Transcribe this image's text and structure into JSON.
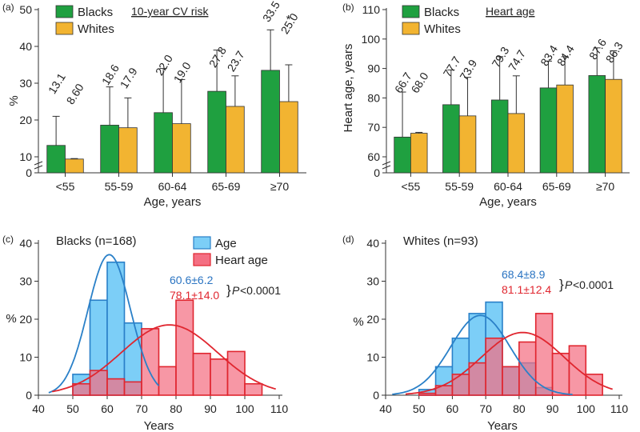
{
  "figure": {
    "colors": {
      "blacks": "#1fa040",
      "whites": "#f2b431",
      "age": "#7ccef7",
      "age_line": "#2a80c8",
      "heart": "#f46f82",
      "heart_line": "#e0262f",
      "overlap": "#b4776a",
      "axis": "#333333",
      "label_blue": "#2a74c2",
      "label_red": "#e0262f"
    }
  },
  "chart_data": [
    {
      "id": "a",
      "panel_label": "(a)",
      "type": "bar",
      "title": "10-year CV risk",
      "xlabel": "Age, years",
      "ylabel": "%",
      "categories": [
        "<55",
        "55-59",
        "60-64",
        "65-69",
        "≥70"
      ],
      "ylim": [
        0,
        50
      ],
      "yticks": [
        "0",
        "10",
        "20",
        "30",
        "40",
        "50"
      ],
      "axis_break": "0-10",
      "legend": [
        "Blacks",
        "Whites"
      ],
      "series": [
        {
          "name": "Blacks",
          "values": [
            13.1,
            18.6,
            22.0,
            27.8,
            33.5
          ],
          "error_upper": [
            21,
            29,
            34,
            39,
            44.5
          ],
          "labels": [
            "13.1",
            "18.6",
            "22.0",
            "27.8",
            "33.5"
          ]
        },
        {
          "name": "Whites",
          "values": [
            8.6,
            17.9,
            19.0,
            23.7,
            25.0
          ],
          "error_upper": [
            8.9,
            26,
            31,
            32,
            35
          ],
          "labels": [
            "8.60",
            "17.9",
            "19.0",
            "23.7",
            "25.0"
          ]
        }
      ],
      "annotations": [
        {
          "text": "*",
          "category": "≥70"
        }
      ]
    },
    {
      "id": "b",
      "panel_label": "(b)",
      "type": "bar",
      "title": "Heart age",
      "xlabel": "Age, years",
      "ylabel": "Heart age, years",
      "categories": [
        "<55",
        "55-59",
        "60-64",
        "65-69",
        "≥70"
      ],
      "ylim": [
        0,
        110
      ],
      "yticks": [
        "0",
        "60",
        "70",
        "80",
        "90",
        "100",
        "110"
      ],
      "axis_break": "0-60",
      "legend": [
        "Blacks",
        "Whites"
      ],
      "series": [
        {
          "name": "Blacks",
          "values": [
            66.7,
            77.7,
            79.3,
            83.4,
            87.6
          ],
          "error_upper": [
            82,
            89.5,
            94,
            92.5,
            97
          ],
          "labels": [
            "66.7",
            "77.7",
            "79.3",
            "83.4",
            "87.6"
          ]
        },
        {
          "name": "Whites",
          "values": [
            68.0,
            73.9,
            74.7,
            84.4,
            86.3
          ],
          "error_upper": [
            68.3,
            87,
            87.5,
            94,
            96
          ],
          "labels": [
            "68.0",
            "73.9",
            "74.7",
            "84.4",
            "86.3"
          ]
        }
      ]
    },
    {
      "id": "c",
      "panel_label": "(c)",
      "type": "histogram",
      "title": "Blacks (n=168)",
      "xlabel": "Years",
      "ylabel": "%",
      "xlim": [
        40,
        110
      ],
      "ylim": [
        0,
        40
      ],
      "xticks": [
        "40",
        "50",
        "60",
        "70",
        "80",
        "90",
        "100",
        "110"
      ],
      "yticks": [
        "0",
        "10",
        "20",
        "30",
        "40"
      ],
      "legend": [
        "Age",
        "Heart age"
      ],
      "bin_width": 5,
      "series": [
        {
          "name": "Age",
          "bin_starts": [
            50,
            55,
            60,
            65
          ],
          "values": [
            5.5,
            25,
            35,
            19
          ]
        },
        {
          "name": "Heart age",
          "bin_starts": [
            50,
            55,
            60,
            65,
            70,
            75,
            80,
            85,
            90,
            95,
            100
          ],
          "values": [
            3,
            6.5,
            4.3,
            3.5,
            17.5,
            7.5,
            25,
            11,
            9.5,
            11.5,
            3
          ]
        }
      ],
      "curves": [
        {
          "name": "Age fit",
          "mean": 60.6,
          "sd": 6.2,
          "peak": 37,
          "x_range": [
            43,
            75
          ]
        },
        {
          "name": "Heart age fit",
          "mean": 78.1,
          "sd": 14.0,
          "peak": 18.5,
          "x_range": [
            44,
            109
          ]
        }
      ],
      "stats": {
        "age": "60.6±6.2",
        "heart_age": "78.1±14.0",
        "p_prefix": "}",
        "p_symbol": "P",
        "p_value": "<0.0001"
      }
    },
    {
      "id": "d",
      "panel_label": "(d)",
      "type": "histogram",
      "title": "Whites (n=93)",
      "xlabel": "Years",
      "ylabel": "%",
      "xlim": [
        40,
        110
      ],
      "ylim": [
        0,
        40
      ],
      "xticks": [
        "40",
        "50",
        "60",
        "70",
        "80",
        "90",
        "100",
        "110"
      ],
      "yticks": [
        "0",
        "10",
        "20",
        "30",
        "40"
      ],
      "bin_width": 5,
      "series": [
        {
          "name": "Age",
          "bin_starts": [
            50,
            55,
            60,
            65,
            70,
            75,
            80,
            85
          ],
          "values": [
            1.5,
            7.5,
            15,
            21.5,
            24.5,
            7.5,
            8.5,
            2
          ]
        },
        {
          "name": "Heart age",
          "bin_starts": [
            50,
            55,
            60,
            65,
            70,
            75,
            80,
            85,
            90,
            95,
            100
          ],
          "values": [
            0.5,
            2.5,
            5.5,
            8.5,
            15,
            7.5,
            14,
            21.5,
            11,
            13,
            5.5
          ]
        }
      ],
      "curves": [
        {
          "name": "Age fit",
          "mean": 68.4,
          "sd": 8.9,
          "peak": 21,
          "x_range": [
            42,
            96
          ]
        },
        {
          "name": "Heart age fit",
          "mean": 81.1,
          "sd": 12.4,
          "peak": 16.5,
          "x_range": [
            46,
            108
          ]
        }
      ],
      "stats": {
        "age": "68.4±8.9",
        "heart_age": "81.1±12.4",
        "p_prefix": "}",
        "p_symbol": "P",
        "p_value": "<0.0001"
      }
    }
  ]
}
